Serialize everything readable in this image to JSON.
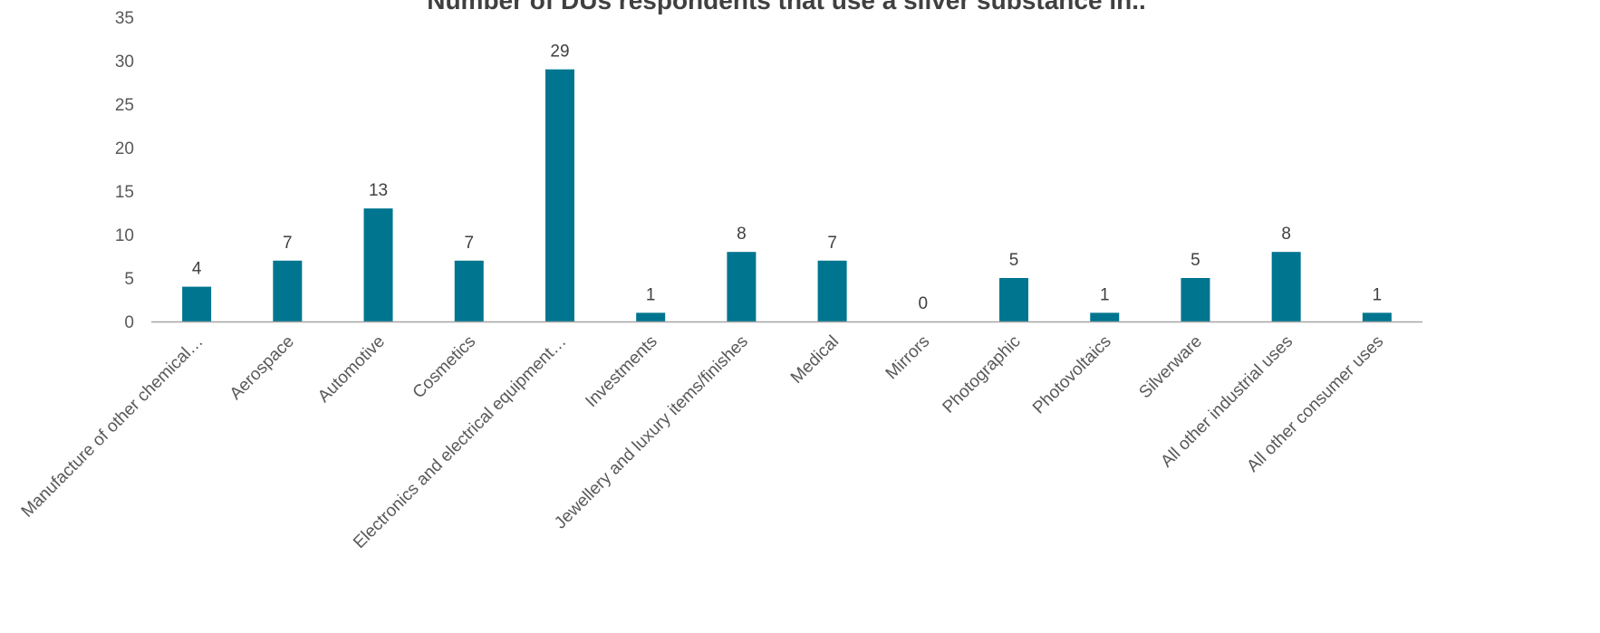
{
  "colors": {
    "bar": "#00758F",
    "axis": "#A6A6A6",
    "tick_text": "#595959",
    "title_text": "#404040"
  },
  "chart_data": {
    "type": "bar",
    "title": "Number of DUs respondents that use a silver substance in..",
    "xlabel": "",
    "ylabel": "",
    "ylim": [
      0,
      35
    ],
    "yticks": [
      0,
      5,
      10,
      15,
      20,
      25,
      30,
      35
    ],
    "grid": false,
    "legend": "none",
    "categories": [
      "Manufacture of other chemical…",
      "Aerospace",
      "Automotive",
      "Cosmetics",
      "Electronics and electrical equipment…",
      "Investments",
      "Jewellery and luxury items/finishes",
      "Medical",
      "Mirrors",
      "Photographic",
      "Photovoltaics",
      "Silverware",
      "All other industrial uses",
      "All other consumer uses"
    ],
    "values": [
      4,
      7,
      13,
      7,
      29,
      1,
      8,
      7,
      0,
      5,
      1,
      5,
      8,
      1
    ]
  }
}
